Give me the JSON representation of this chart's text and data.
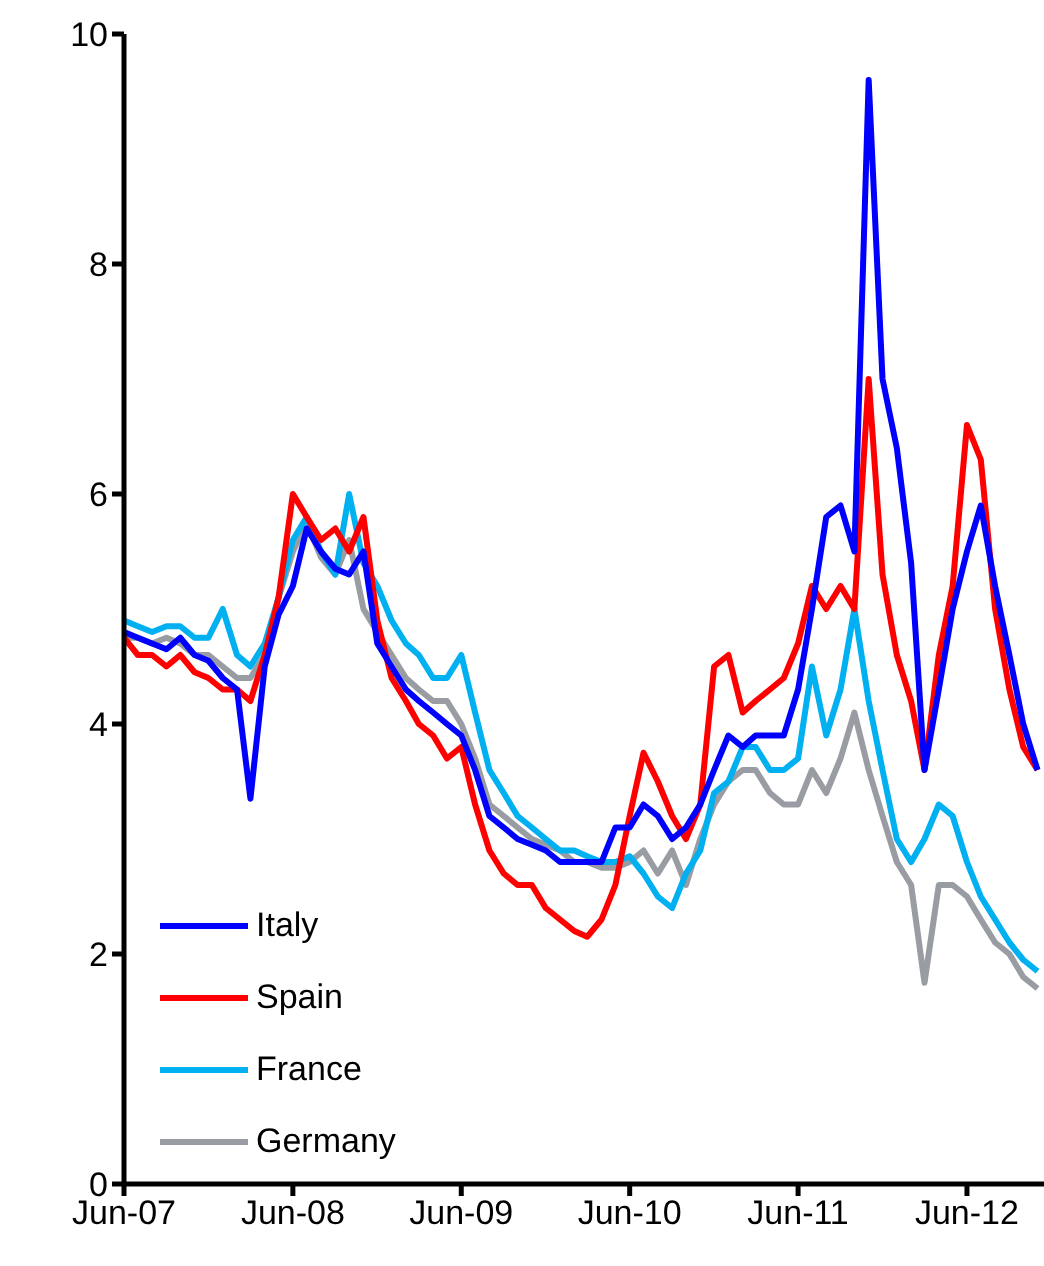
{
  "chart_data": {
    "type": "line",
    "x": [
      "2007-06",
      "2007-07",
      "2007-08",
      "2007-09",
      "2007-10",
      "2007-11",
      "2007-12",
      "2008-01",
      "2008-02",
      "2008-03",
      "2008-04",
      "2008-05",
      "2008-06",
      "2008-07",
      "2008-08",
      "2008-09",
      "2008-10",
      "2008-11",
      "2008-12",
      "2009-01",
      "2009-02",
      "2009-03",
      "2009-04",
      "2009-05",
      "2009-06",
      "2009-07",
      "2009-08",
      "2009-09",
      "2009-10",
      "2009-11",
      "2009-12",
      "2010-01",
      "2010-02",
      "2010-03",
      "2010-04",
      "2010-05",
      "2010-06",
      "2010-07",
      "2010-08",
      "2010-09",
      "2010-10",
      "2010-11",
      "2010-12",
      "2011-01",
      "2011-02",
      "2011-03",
      "2011-04",
      "2011-05",
      "2011-06",
      "2011-07",
      "2011-08",
      "2011-09",
      "2011-10",
      "2011-11",
      "2011-12",
      "2012-01",
      "2012-02",
      "2012-03",
      "2012-04",
      "2012-05",
      "2012-06",
      "2012-07",
      "2012-08",
      "2012-09",
      "2012-10",
      "2012-11"
    ],
    "series": [
      {
        "name": "Italy",
        "color": "#0000ff",
        "values": [
          4.8,
          4.75,
          4.7,
          4.65,
          4.75,
          4.6,
          4.55,
          4.4,
          4.3,
          3.35,
          4.5,
          4.95,
          5.2,
          5.7,
          5.5,
          5.35,
          5.3,
          5.5,
          4.7,
          4.5,
          4.3,
          4.2,
          4.1,
          4.0,
          3.9,
          3.6,
          3.2,
          3.1,
          3.0,
          2.95,
          2.9,
          2.8,
          2.8,
          2.8,
          2.8,
          3.1,
          3.1,
          3.3,
          3.2,
          3.0,
          3.1,
          3.3,
          3.6,
          3.9,
          3.8,
          3.9,
          3.9,
          3.9,
          4.3,
          5.0,
          5.8,
          5.9,
          5.5,
          9.6,
          7.0,
          6.4,
          5.4,
          3.6,
          4.3,
          5.0,
          5.5,
          5.9,
          5.2,
          4.6,
          4.0,
          3.6
        ]
      },
      {
        "name": "Spain",
        "color": "#ff0000",
        "values": [
          4.75,
          4.6,
          4.6,
          4.5,
          4.6,
          4.45,
          4.4,
          4.3,
          4.3,
          4.2,
          4.6,
          5.1,
          6.0,
          5.8,
          5.6,
          5.7,
          5.5,
          5.8,
          4.9,
          4.4,
          4.2,
          4.0,
          3.9,
          3.7,
          3.8,
          3.3,
          2.9,
          2.7,
          2.6,
          2.6,
          2.4,
          2.3,
          2.2,
          2.15,
          2.3,
          2.6,
          3.2,
          3.75,
          3.5,
          3.2,
          3.0,
          3.3,
          4.5,
          4.6,
          4.1,
          4.2,
          4.3,
          4.4,
          4.7,
          5.2,
          5.0,
          5.2,
          5.0,
          7.0,
          5.3,
          4.6,
          4.2,
          3.6,
          4.6,
          5.2,
          6.6,
          6.3,
          5.0,
          4.3,
          3.8,
          3.6
        ]
      },
      {
        "name": "France",
        "color": "#00b0f0",
        "values": [
          4.9,
          4.85,
          4.8,
          4.85,
          4.85,
          4.75,
          4.75,
          5.0,
          4.6,
          4.5,
          4.7,
          5.1,
          5.6,
          5.8,
          5.5,
          5.3,
          6.0,
          5.4,
          5.2,
          4.9,
          4.7,
          4.6,
          4.4,
          4.4,
          4.6,
          4.1,
          3.6,
          3.4,
          3.2,
          3.1,
          3.0,
          2.9,
          2.9,
          2.85,
          2.8,
          2.8,
          2.85,
          2.7,
          2.5,
          2.4,
          2.7,
          2.9,
          3.4,
          3.5,
          3.8,
          3.8,
          3.6,
          3.6,
          3.7,
          4.5,
          3.9,
          4.3,
          5.0,
          4.2,
          3.6,
          3.0,
          2.8,
          3.0,
          3.3,
          3.2,
          2.8,
          2.5,
          2.3,
          2.1,
          1.95,
          1.85
        ]
      },
      {
        "name": "Germany",
        "color": "#999da3",
        "values": [
          4.75,
          4.75,
          4.7,
          4.75,
          4.7,
          4.6,
          4.6,
          4.5,
          4.4,
          4.4,
          4.6,
          5.1,
          5.5,
          5.75,
          5.45,
          5.3,
          5.6,
          5.0,
          4.8,
          4.6,
          4.4,
          4.3,
          4.2,
          4.2,
          4.0,
          3.7,
          3.3,
          3.2,
          3.1,
          3.0,
          2.95,
          2.9,
          2.8,
          2.8,
          2.75,
          2.75,
          2.8,
          2.9,
          2.7,
          2.9,
          2.6,
          3.0,
          3.3,
          3.5,
          3.6,
          3.6,
          3.4,
          3.3,
          3.3,
          3.6,
          3.4,
          3.7,
          4.1,
          3.6,
          3.2,
          2.8,
          2.6,
          1.75,
          2.6,
          2.6,
          2.5,
          2.3,
          2.1,
          2.0,
          1.8,
          1.7
        ]
      }
    ],
    "xlim": [
      "2007-06",
      "2012-11-15"
    ],
    "xticks": [
      {
        "value": "2007-06",
        "label": "Jun-07"
      },
      {
        "value": "2008-06",
        "label": "Jun-08"
      },
      {
        "value": "2009-06",
        "label": "Jun-09"
      },
      {
        "value": "2010-06",
        "label": "Jun-10"
      },
      {
        "value": "2011-06",
        "label": "Jun-11"
      },
      {
        "value": "2012-06",
        "label": "Jun-12"
      }
    ],
    "ylim": [
      0,
      10
    ],
    "yticks": [
      0,
      2,
      4,
      6,
      8,
      10
    ],
    "grid": false,
    "legend": "bottom left",
    "marker": "none",
    "line_style": "solid"
  }
}
